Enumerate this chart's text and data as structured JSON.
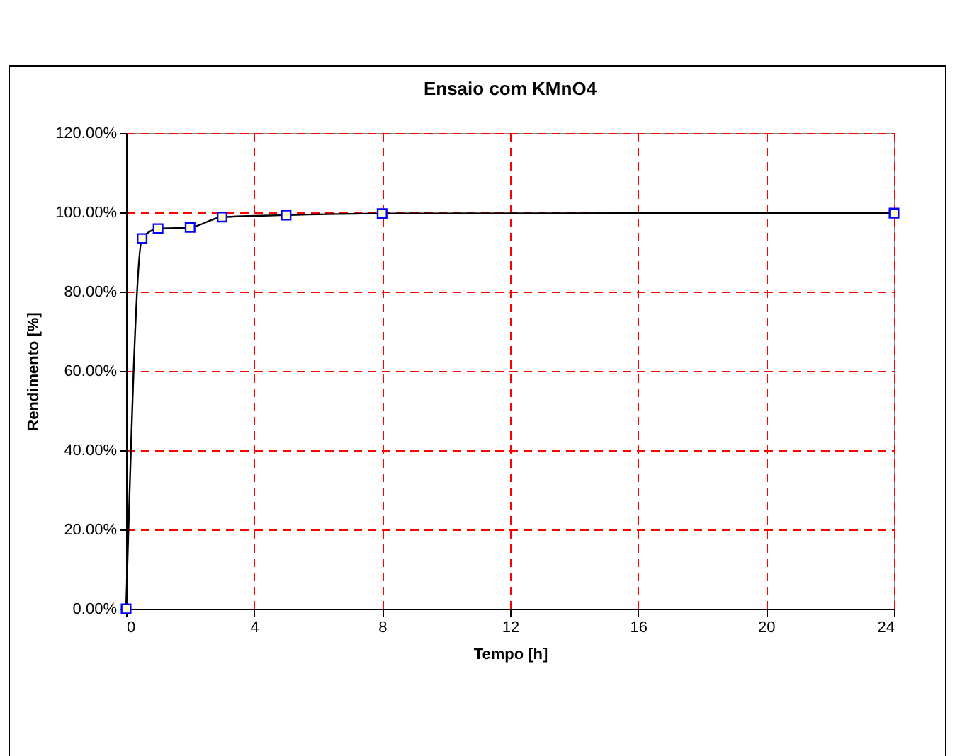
{
  "chart_data": {
    "type": "line",
    "title": "Ensaio com KMnO4",
    "xlabel": "Tempo [h]",
    "ylabel": "Rendimento [%]",
    "x": [
      0,
      0.5,
      1,
      2,
      3,
      5,
      8,
      24
    ],
    "series": [
      {
        "color": "#000000",
        "values": [
          0,
          93.4,
          95.9,
          96.2,
          98.8,
          99.3,
          99.7,
          99.8
        ]
      }
    ],
    "xlim": [
      0,
      24
    ],
    "xticks": [
      0,
      4,
      8,
      12,
      16,
      20,
      24
    ],
    "ylim": [
      0,
      120
    ],
    "yticks": [
      {
        "value": 0,
        "label": "0.00%"
      },
      {
        "value": 20,
        "label": "20.00%"
      },
      {
        "value": 40,
        "label": "40.00%"
      },
      {
        "value": 60,
        "label": "60.00%"
      },
      {
        "value": 80,
        "label": "80.00%"
      },
      {
        "value": 100,
        "label": "100.00%"
      },
      {
        "value": 120,
        "label": "120.00%"
      }
    ],
    "grid": true,
    "marker": "square",
    "line_style": "solid"
  }
}
